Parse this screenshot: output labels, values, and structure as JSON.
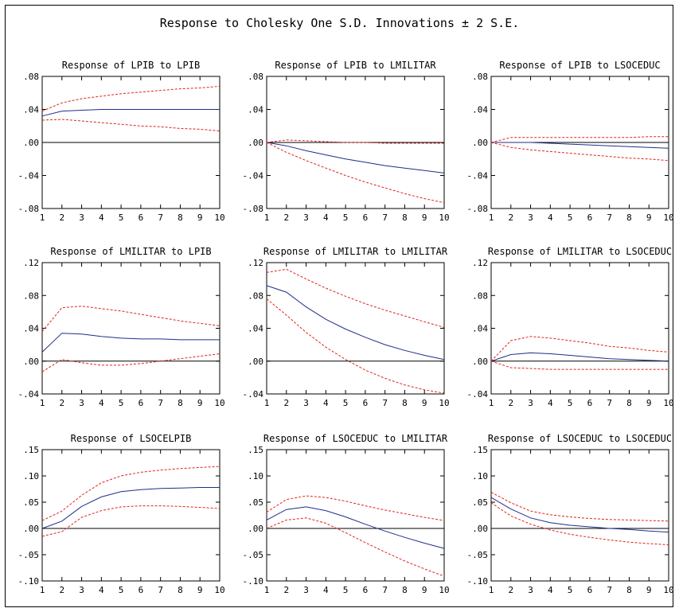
{
  "title": "Response to Cholesky One S.D. Innovations ± 2 S.E.",
  "colors": {
    "response": "#1f2d8a",
    "band": "#e0221a",
    "axis": "#000000"
  },
  "chart_data": [
    {
      "type": "line",
      "title": "Response of LPIB to LPIB",
      "x": [
        1,
        2,
        3,
        4,
        5,
        6,
        7,
        8,
        9,
        10
      ],
      "ylim": [
        -0.08,
        0.08
      ],
      "yticks": [
        0.08,
        0.04,
        0.0,
        -0.04,
        -0.08
      ],
      "yticklabels": [
        ".08",
        ".04",
        ".00",
        "-.04",
        "-.08"
      ],
      "series": [
        {
          "values": [
            0.032,
            0.038,
            0.039,
            0.04,
            0.04,
            0.04,
            0.04,
            0.04,
            0.04,
            0.04
          ]
        },
        {
          "values": [
            0.038,
            0.048,
            0.053,
            0.056,
            0.059,
            0.061,
            0.063,
            0.065,
            0.066,
            0.068
          ]
        },
        {
          "values": [
            0.027,
            0.028,
            0.026,
            0.024,
            0.022,
            0.02,
            0.019,
            0.017,
            0.016,
            0.014
          ]
        }
      ]
    },
    {
      "type": "line",
      "title": "Response of LPIB to LMILITAR",
      "x": [
        1,
        2,
        3,
        4,
        5,
        6,
        7,
        8,
        9,
        10
      ],
      "ylim": [
        -0.08,
        0.08
      ],
      "yticks": [
        0.08,
        0.04,
        0.0,
        -0.04,
        -0.08
      ],
      "yticklabels": [
        ".08",
        ".04",
        ".00",
        "-.04",
        "-.08"
      ],
      "series": [
        {
          "values": [
            0.0,
            -0.004,
            -0.01,
            -0.015,
            -0.02,
            -0.024,
            -0.028,
            -0.031,
            -0.034,
            -0.037
          ]
        },
        {
          "values": [
            0.0,
            0.003,
            0.002,
            0.001,
            0.0,
            0.0,
            -0.001,
            -0.001,
            -0.001,
            -0.001
          ]
        },
        {
          "values": [
            0.0,
            -0.012,
            -0.022,
            -0.031,
            -0.04,
            -0.048,
            -0.055,
            -0.062,
            -0.068,
            -0.073
          ]
        }
      ]
    },
    {
      "type": "line",
      "title": "Response of LPIB to LSOCEDUC",
      "x": [
        1,
        2,
        3,
        4,
        5,
        6,
        7,
        8,
        9,
        10
      ],
      "ylim": [
        -0.08,
        0.08
      ],
      "yticks": [
        0.08,
        0.04,
        0.0,
        -0.04,
        -0.08
      ],
      "yticklabels": [
        ".08",
        ".04",
        ".00",
        "-.04",
        "-.08"
      ],
      "series": [
        {
          "values": [
            0.0,
            0.0,
            0.0,
            -0.001,
            -0.002,
            -0.003,
            -0.004,
            -0.005,
            -0.006,
            -0.007
          ]
        },
        {
          "values": [
            0.0,
            0.006,
            0.006,
            0.006,
            0.006,
            0.006,
            0.006,
            0.006,
            0.007,
            0.007
          ]
        },
        {
          "values": [
            0.0,
            -0.006,
            -0.009,
            -0.011,
            -0.013,
            -0.015,
            -0.017,
            -0.019,
            -0.02,
            -0.022
          ]
        }
      ]
    },
    {
      "type": "line",
      "title": "Response of LMILITAR to LPIB",
      "x": [
        1,
        2,
        3,
        4,
        5,
        6,
        7,
        8,
        9,
        10
      ],
      "ylim": [
        -0.04,
        0.12
      ],
      "yticks": [
        0.12,
        0.08,
        0.04,
        0.0,
        -0.04
      ],
      "yticklabels": [
        ".12",
        ".08",
        ".04",
        ".00",
        "-.04"
      ],
      "series": [
        {
          "values": [
            0.011,
            0.034,
            0.033,
            0.03,
            0.028,
            0.027,
            0.027,
            0.026,
            0.026,
            0.026
          ]
        },
        {
          "values": [
            0.036,
            0.065,
            0.067,
            0.064,
            0.061,
            0.057,
            0.053,
            0.049,
            0.046,
            0.043
          ]
        },
        {
          "values": [
            -0.013,
            0.002,
            -0.002,
            -0.005,
            -0.005,
            -0.003,
            0.0,
            0.003,
            0.006,
            0.009
          ]
        }
      ]
    },
    {
      "type": "line",
      "title": "Response of LMILITAR to LMILITAR",
      "x": [
        1,
        2,
        3,
        4,
        5,
        6,
        7,
        8,
        9,
        10
      ],
      "ylim": [
        -0.04,
        0.12
      ],
      "yticks": [
        0.12,
        0.08,
        0.04,
        0.0,
        -0.04
      ],
      "yticklabels": [
        ".12",
        ".08",
        ".04",
        ".00",
        "-.04"
      ],
      "series": [
        {
          "values": [
            0.092,
            0.084,
            0.066,
            0.051,
            0.039,
            0.029,
            0.02,
            0.013,
            0.007,
            0.002
          ]
        },
        {
          "values": [
            0.108,
            0.112,
            0.1,
            0.089,
            0.079,
            0.07,
            0.062,
            0.055,
            0.048,
            0.041
          ]
        },
        {
          "values": [
            0.076,
            0.056,
            0.035,
            0.017,
            0.002,
            -0.011,
            -0.021,
            -0.029,
            -0.035,
            -0.039
          ]
        }
      ]
    },
    {
      "type": "line",
      "title": "Response of LMILITAR to LSOCEDUC",
      "x": [
        1,
        2,
        3,
        4,
        5,
        6,
        7,
        8,
        9,
        10
      ],
      "ylim": [
        -0.04,
        0.12
      ],
      "yticks": [
        0.12,
        0.08,
        0.04,
        0.0,
        -0.04
      ],
      "yticklabels": [
        ".12",
        ".08",
        ".04",
        ".00",
        "-.04"
      ],
      "series": [
        {
          "values": [
            0.0,
            0.008,
            0.01,
            0.009,
            0.007,
            0.005,
            0.003,
            0.002,
            0.001,
            0.0
          ]
        },
        {
          "values": [
            0.0,
            0.025,
            0.03,
            0.028,
            0.025,
            0.022,
            0.018,
            0.016,
            0.013,
            0.011
          ]
        },
        {
          "values": [
            0.0,
            -0.008,
            -0.009,
            -0.01,
            -0.01,
            -0.01,
            -0.01,
            -0.01,
            -0.01,
            -0.01
          ]
        }
      ]
    },
    {
      "type": "line",
      "title": "Response of LSOCELPIB",
      "x": [
        1,
        2,
        3,
        4,
        5,
        6,
        7,
        8,
        9,
        10
      ],
      "ylim": [
        -0.1,
        0.15
      ],
      "yticks": [
        0.15,
        0.1,
        0.05,
        0.0,
        -0.05,
        -0.1
      ],
      "yticklabels": [
        ".15",
        ".10",
        ".05",
        ".00",
        "-.05",
        "-.10"
      ],
      "series": [
        {
          "values": [
            0.0,
            0.014,
            0.042,
            0.06,
            0.07,
            0.074,
            0.076,
            0.077,
            0.078,
            0.078
          ]
        },
        {
          "values": [
            0.015,
            0.033,
            0.063,
            0.087,
            0.1,
            0.107,
            0.111,
            0.114,
            0.116,
            0.118
          ]
        },
        {
          "values": [
            -0.015,
            -0.006,
            0.021,
            0.034,
            0.041,
            0.043,
            0.043,
            0.042,
            0.04,
            0.038
          ]
        }
      ]
    },
    {
      "type": "line",
      "title": "Response of LSOCEDUC to LMILITAR",
      "x": [
        1,
        2,
        3,
        4,
        5,
        6,
        7,
        8,
        9,
        10
      ],
      "ylim": [
        -0.1,
        0.15
      ],
      "yticks": [
        0.15,
        0.1,
        0.05,
        0.0,
        -0.05,
        -0.1
      ],
      "yticklabels": [
        ".15",
        ".10",
        ".05",
        ".00",
        "-.05",
        "-.10"
      ],
      "series": [
        {
          "values": [
            0.016,
            0.036,
            0.041,
            0.034,
            0.022,
            0.008,
            -0.005,
            -0.017,
            -0.028,
            -0.038
          ]
        },
        {
          "values": [
            0.031,
            0.055,
            0.062,
            0.059,
            0.052,
            0.043,
            0.035,
            0.028,
            0.021,
            0.015
          ]
        },
        {
          "values": [
            0.0,
            0.016,
            0.02,
            0.01,
            -0.008,
            -0.027,
            -0.045,
            -0.062,
            -0.077,
            -0.091
          ]
        }
      ]
    },
    {
      "type": "line",
      "title": "Response of LSOCEDUC to LSOCEDUC",
      "x": [
        1,
        2,
        3,
        4,
        5,
        6,
        7,
        8,
        9,
        10
      ],
      "ylim": [
        -0.1,
        0.15
      ],
      "yticks": [
        0.15,
        0.1,
        0.05,
        0.0,
        -0.05,
        -0.1
      ],
      "yticklabels": [
        ".15",
        ".10",
        ".05",
        ".00",
        "-.05",
        "-.10"
      ],
      "series": [
        {
          "values": [
            0.059,
            0.037,
            0.02,
            0.011,
            0.006,
            0.003,
            0.0,
            -0.002,
            -0.005,
            -0.007
          ]
        },
        {
          "values": [
            0.069,
            0.049,
            0.033,
            0.026,
            0.022,
            0.019,
            0.017,
            0.016,
            0.015,
            0.014
          ]
        },
        {
          "values": [
            0.049,
            0.024,
            0.008,
            -0.003,
            -0.011,
            -0.017,
            -0.022,
            -0.026,
            -0.029,
            -0.031
          ]
        }
      ]
    }
  ]
}
